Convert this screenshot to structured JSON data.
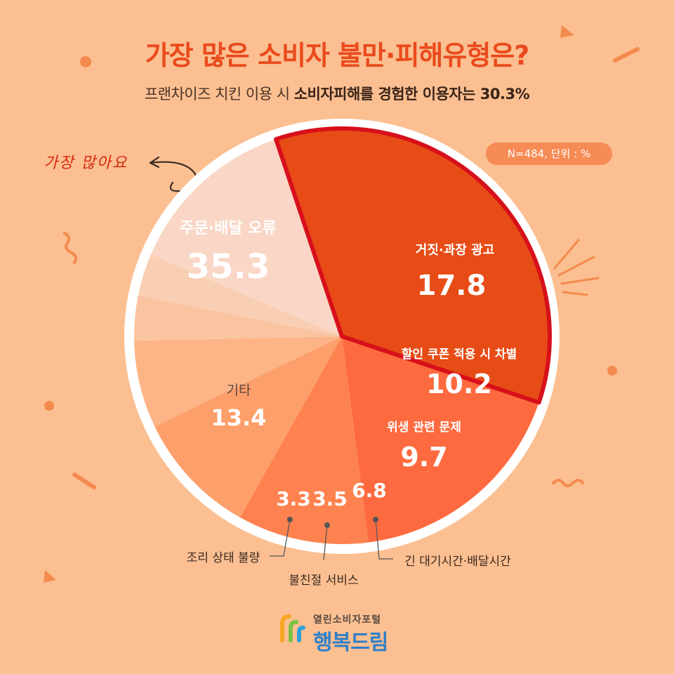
{
  "header": {
    "title": "가장 많은 소비자 불만·피해유형은?",
    "subtitle_prefix": "프랜차이즈 치킨 이용 시 ",
    "subtitle_bold": "소비자피해를 경험한 이용자는 30.3%"
  },
  "badge": {
    "text": "N=484, 단위 : %"
  },
  "note": {
    "text": "가장 많아요"
  },
  "logo": {
    "small_text": "열린소비자포털",
    "big_text": "행복드림"
  },
  "colors": {
    "background": "#fbbf91",
    "title": "#ea4a1c",
    "highlight_border": "#d7101b"
  },
  "chart_data": {
    "type": "pie",
    "unit": "%",
    "slices": [
      {
        "label": "주문·배달 오류",
        "value": 35.3,
        "color": "#e84c16",
        "highlight": true,
        "label_style": "inside",
        "label_color": "#ffffff"
      },
      {
        "label": "거짓·과장 광고",
        "value": 17.8,
        "color": "#fe6a3f",
        "label_style": "inside",
        "label_color": "#ffffff"
      },
      {
        "label": "할인 쿠폰 적용 시 차별",
        "value": 10.2,
        "color": "#fe824f",
        "label_style": "inside",
        "label_color": "#ffffff"
      },
      {
        "label": "위생 관련 문제",
        "value": 9.7,
        "color": "#fd9f6a",
        "label_style": "inside",
        "label_color": "#ffffff"
      },
      {
        "label": "긴 대기시간·배달시간",
        "value": 6.8,
        "color": "#fdb486",
        "label_style": "callout",
        "label_color": "#ffffff"
      },
      {
        "label": "불친절 서비스",
        "value": 3.5,
        "color": "#fbc4a0",
        "label_style": "callout",
        "label_color": "#ffffff"
      },
      {
        "label": "조리 상태 불량",
        "value": 3.3,
        "color": "#f9cfb4",
        "label_style": "callout",
        "label_color": "#ffffff"
      },
      {
        "label": "기타",
        "value": 13.4,
        "color": "#f9d6c5",
        "label_style": "inside",
        "label_color": "#ffffff"
      }
    ]
  }
}
